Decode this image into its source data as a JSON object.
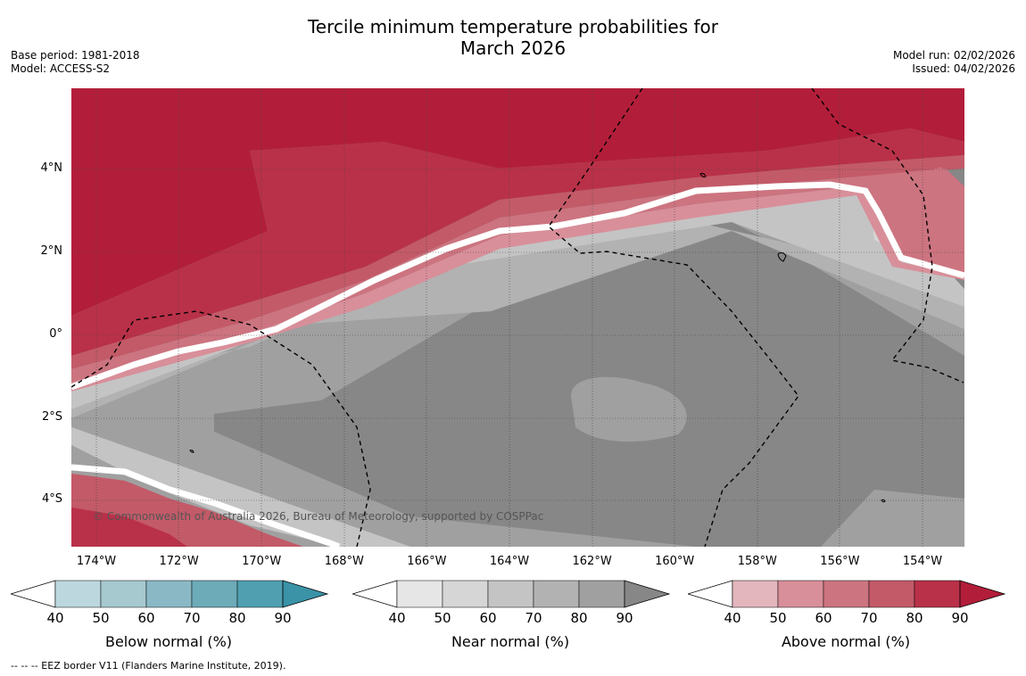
{
  "title_line1": "Tercile minimum temperature probabilities for",
  "title_line2": "March 2026",
  "base_period": "Base period: 1981-2018",
  "model": "Model: ACCESS-S2",
  "model_run": "Model run: 02/02/2026",
  "issued": "Issued: 04/02/2026",
  "copyright": "© Commonwealth of Australia 2026, Bureau of Meteorology, supported by COSPPac",
  "footer": "--  --  -- EEZ border V11 (Flanders Marine Institute, 2019).",
  "lat_labels": [
    "4°N",
    "2°N",
    "0°",
    "2°S",
    "4°S"
  ],
  "lon_labels": [
    "174°W",
    "172°W",
    "170°W",
    "168°W",
    "166°W",
    "164°W",
    "162°W",
    "160°W",
    "158°W",
    "156°W",
    "154°W"
  ],
  "colorbars": [
    {
      "label": "Below normal (%)",
      "ticks": [
        "40",
        "50",
        "60",
        "70",
        "80",
        "90"
      ],
      "colors": [
        "#bcd7de",
        "#a6c9cf",
        "#8ab9c5",
        "#6dabb9",
        "#4f9fb0",
        "#3a93a7"
      ]
    },
    {
      "label": "Near normal (%)",
      "ticks": [
        "40",
        "50",
        "60",
        "70",
        "80",
        "90"
      ],
      "colors": [
        "#e6e6e6",
        "#d6d6d6",
        "#c4c4c4",
        "#b2b2b2",
        "#a0a0a0",
        "#878787"
      ]
    },
    {
      "label": "Above normal (%)",
      "ticks": [
        "40",
        "50",
        "60",
        "70",
        "80",
        "90"
      ],
      "colors": [
        "#e3b5bd",
        "#d88f9a",
        "#cc7480",
        "#c35a68",
        "#b93148",
        "#b21e3a"
      ]
    }
  ]
}
